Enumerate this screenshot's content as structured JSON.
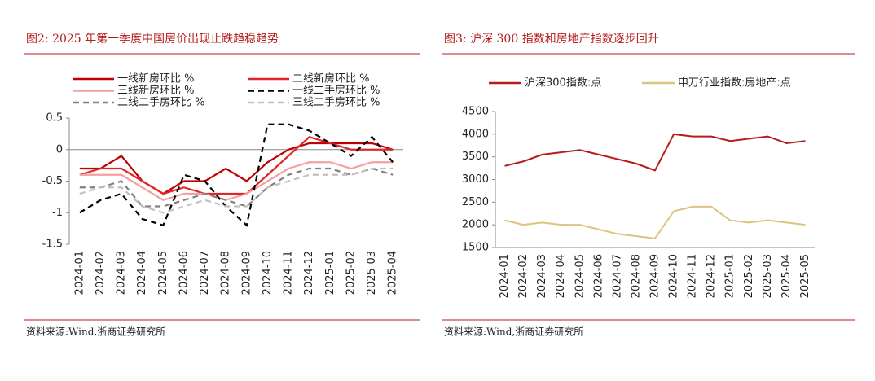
{
  "chart_data": [
    {
      "type": "line",
      "title": "图2:  2025 年第一季度中国房价出现止跌趋稳趋势",
      "source": "资料来源:Wind,浙商证券研究所",
      "categories": [
        "2024-01",
        "2024-02",
        "2024-03",
        "2024-04",
        "2024-05",
        "2024-06",
        "2024-07",
        "2024-08",
        "2024-09",
        "2024-10",
        "2024-11",
        "2024-12",
        "2025-01",
        "2025-02",
        "2025-03",
        "2025-04"
      ],
      "ylim": [
        -1.5,
        0.5
      ],
      "yticks": [
        -1.5,
        -1,
        -0.5,
        0,
        0.5
      ],
      "series": [
        {
          "name": "一线新房环比 %",
          "color": "#c00000",
          "style": "solid",
          "values": [
            -0.3,
            -0.3,
            -0.1,
            -0.5,
            -0.7,
            -0.5,
            -0.5,
            -0.3,
            -0.5,
            -0.2,
            0,
            0.1,
            0.1,
            0.1,
            0.1,
            0
          ]
        },
        {
          "name": "二线新房环比 %",
          "color": "#e0262b",
          "style": "solid",
          "values": [
            -0.4,
            -0.3,
            -0.3,
            -0.5,
            -0.7,
            -0.6,
            -0.7,
            -0.7,
            -0.7,
            -0.4,
            -0.1,
            0.2,
            0.1,
            0,
            0,
            0
          ]
        },
        {
          "name": "三线新房环比 %",
          "color": "#f2a0a0",
          "style": "solid",
          "values": [
            -0.4,
            -0.4,
            -0.4,
            -0.6,
            -0.8,
            -0.7,
            -0.7,
            -0.8,
            -0.7,
            -0.5,
            -0.3,
            -0.2,
            -0.2,
            -0.3,
            -0.2,
            -0.2
          ]
        },
        {
          "name": "一线二手房环比 %",
          "color": "#000000",
          "style": "dashed",
          "values": [
            -1,
            -0.8,
            -0.7,
            -1.1,
            -1.2,
            -0.4,
            -0.5,
            -0.9,
            -1.2,
            0.4,
            0.4,
            0.3,
            0.1,
            -0.1,
            0.2,
            -0.2
          ]
        },
        {
          "name": "二线二手房环比 %",
          "color": "#808080",
          "style": "dashed",
          "values": [
            -0.6,
            -0.6,
            -0.5,
            -0.9,
            -0.9,
            -0.8,
            -0.7,
            -0.8,
            -0.9,
            -0.6,
            -0.4,
            -0.3,
            -0.3,
            -0.4,
            -0.3,
            -0.4
          ]
        },
        {
          "name": "三线二手房环比 %",
          "color": "#c0c0c0",
          "style": "dashed",
          "values": [
            -0.7,
            -0.6,
            -0.6,
            -0.9,
            -1,
            -0.9,
            -0.8,
            -0.9,
            -0.9,
            -0.6,
            -0.5,
            -0.4,
            -0.4,
            -0.4,
            -0.3,
            -0.3
          ]
        }
      ]
    },
    {
      "type": "line",
      "title": "图3:  沪深 300 指数和房地产指数逐步回升",
      "source": "资料来源:Wind,浙商证券研究所",
      "categories": [
        "2024-01",
        "2024-02",
        "2024-03",
        "2024-04",
        "2024-05",
        "2024-06",
        "2024-07",
        "2024-08",
        "2024-09",
        "2024-10",
        "2024-11",
        "2024-12",
        "2025-01",
        "2025-02",
        "2025-03",
        "2025-04",
        "2025-05"
      ],
      "ylim": [
        1500,
        4500
      ],
      "yticks": [
        1500,
        2000,
        2500,
        3000,
        3500,
        4000,
        4500
      ],
      "series": [
        {
          "name": "沪深300指数:点",
          "color": "#b71c1c",
          "style": "solid",
          "values": [
            3300,
            3400,
            3550,
            3600,
            3650,
            3550,
            3450,
            3350,
            3200,
            4000,
            3950,
            3950,
            3850,
            3900,
            3950,
            3800,
            3850
          ]
        },
        {
          "name": "申万行业指数:房地产:点",
          "color": "#dcc47e",
          "style": "solid",
          "values": [
            2100,
            2000,
            2050,
            2000,
            2000,
            1900,
            1800,
            1750,
            1700,
            2300,
            2400,
            2400,
            2100,
            2050,
            2100,
            2050,
            2000
          ]
        }
      ]
    }
  ]
}
